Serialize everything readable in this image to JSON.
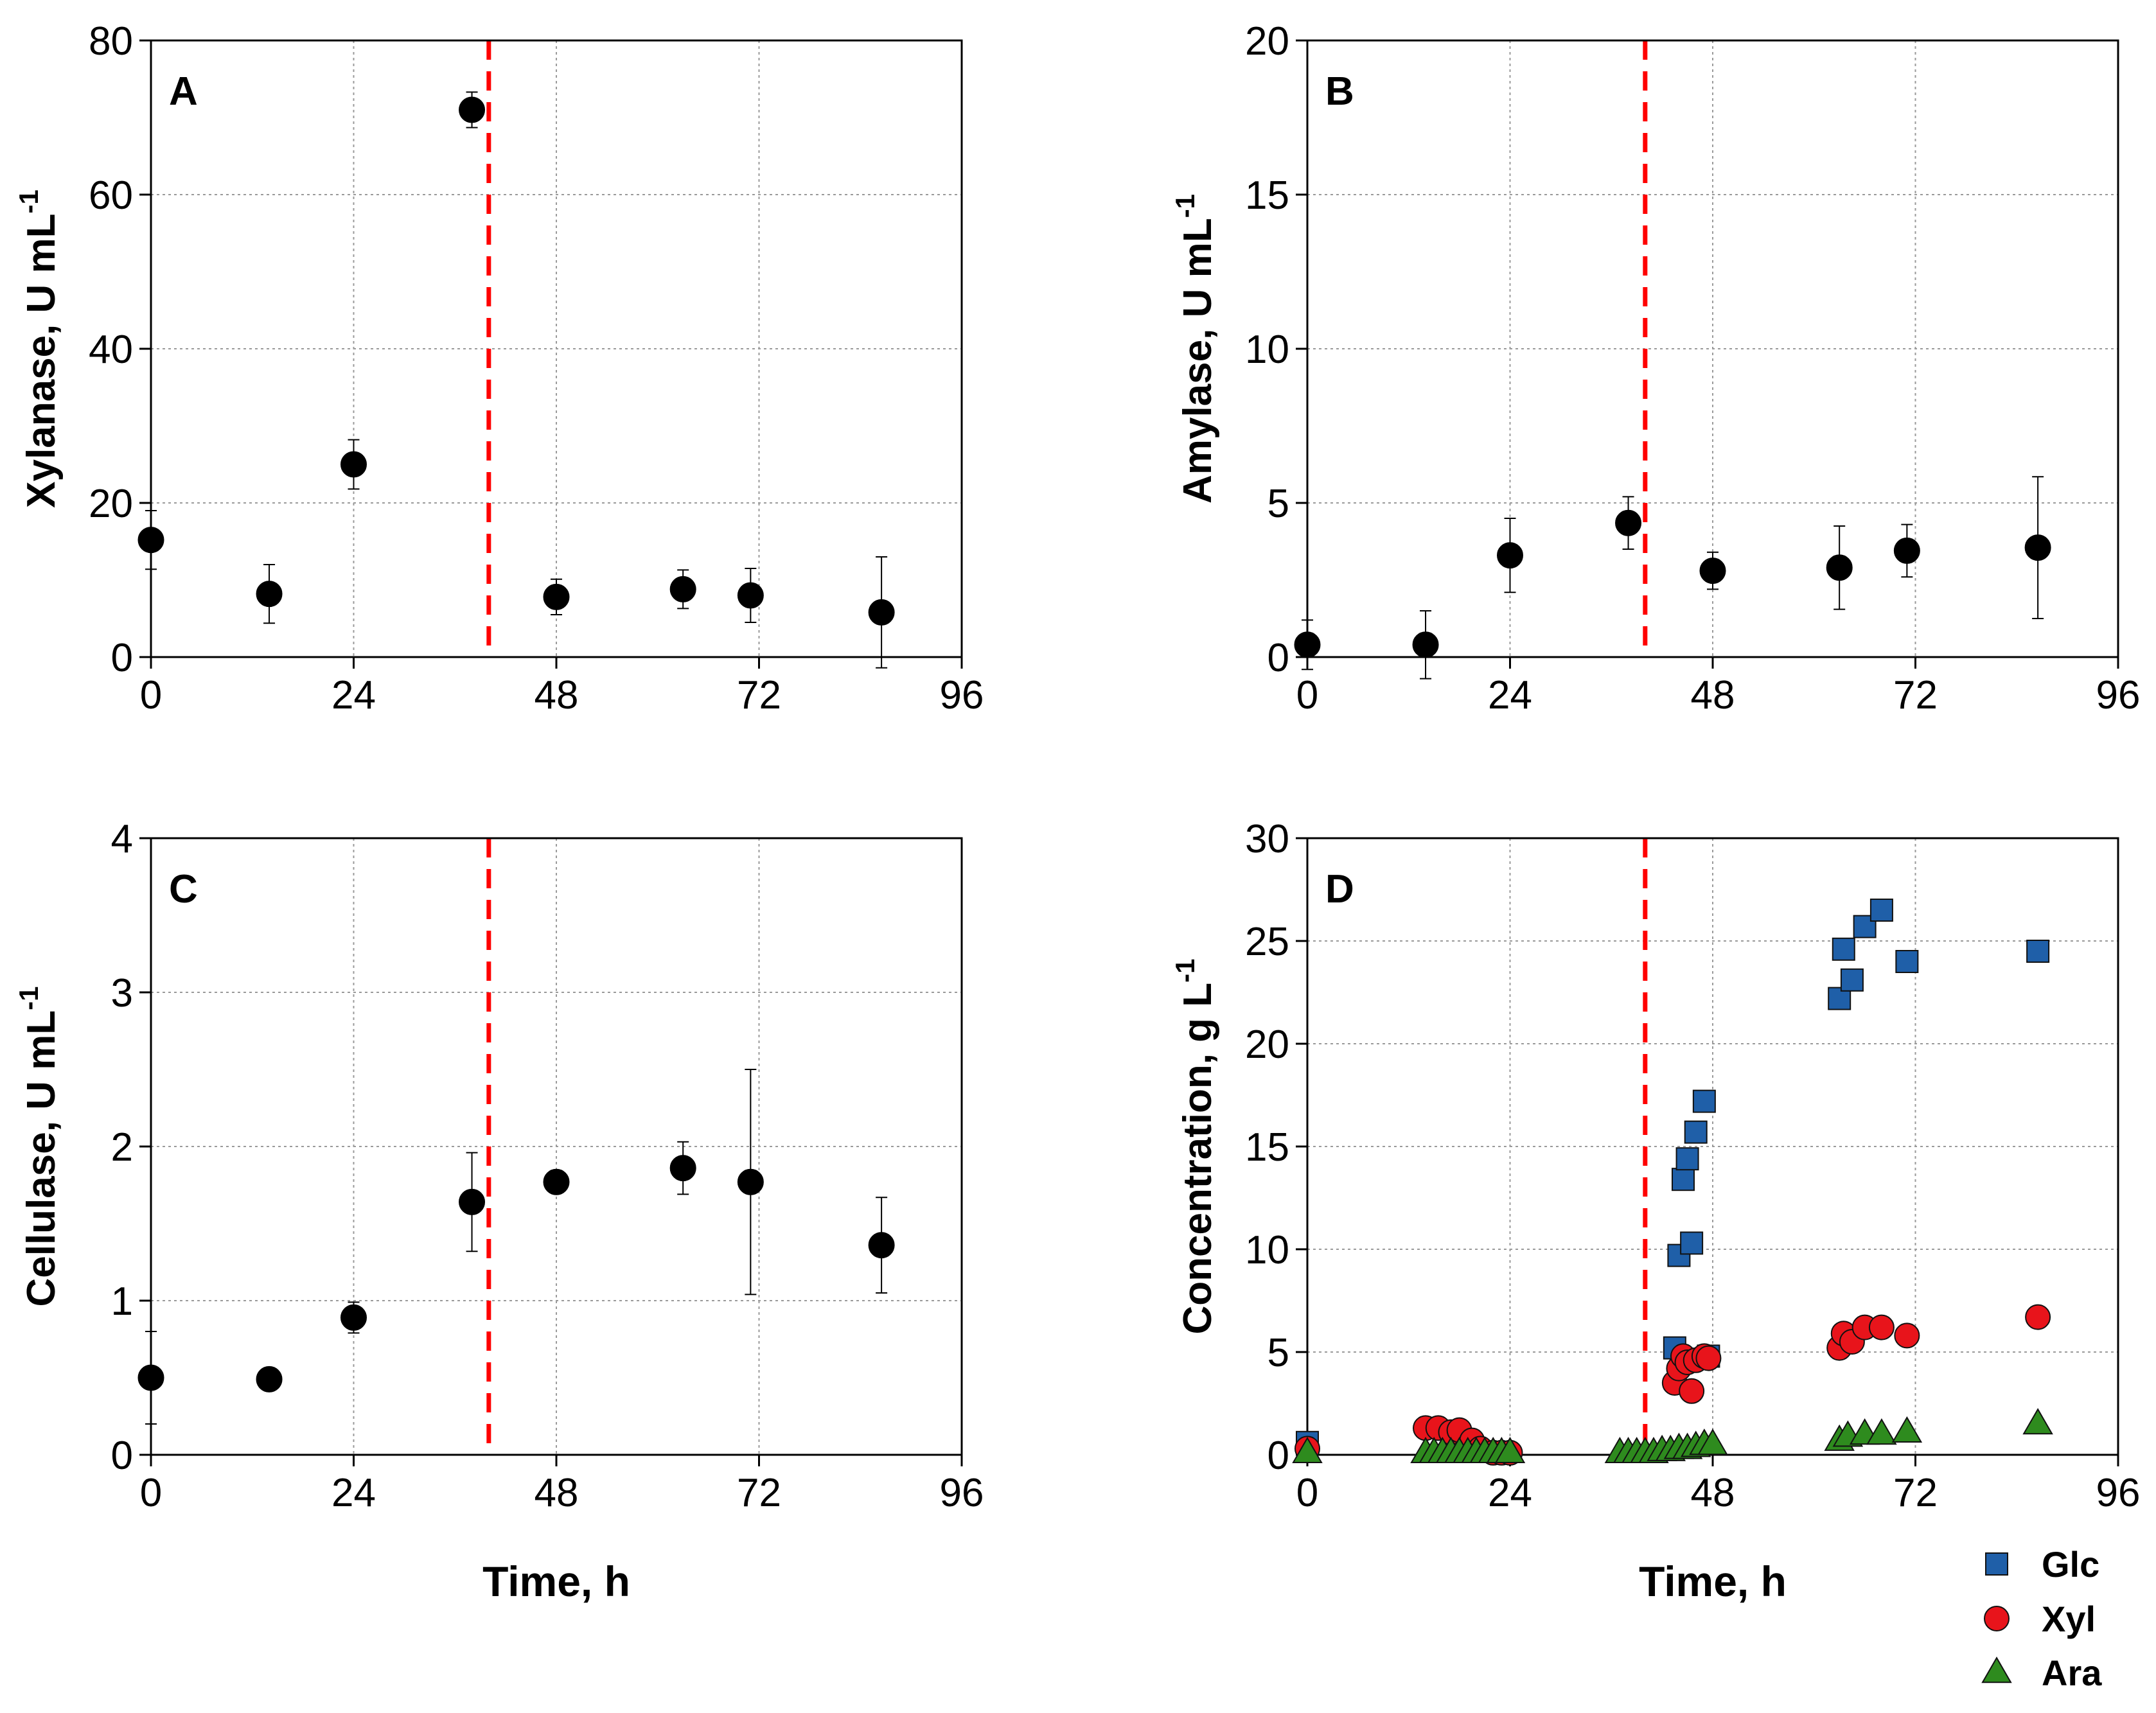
{
  "colors": {
    "marker": "#000000",
    "errorbar": "#000000",
    "grid": "#9a9a9a",
    "inoculation_line": "#ff0000",
    "glc": "#1f5fa8",
    "xyl": "#e8141b",
    "ara": "#2e8b1e",
    "marker_edge": "#111111"
  },
  "chart_data": [
    {
      "panel": "A",
      "type": "scatter",
      "xlabel": "",
      "ylabel": "Xylanase, U mL",
      "ylabel_sup": "-1",
      "xlim": [
        0,
        96
      ],
      "ylim": [
        0,
        80
      ],
      "xticks": [
        0,
        24,
        48,
        72,
        96
      ],
      "yticks": [
        0,
        20,
        40,
        60,
        80
      ],
      "xtick_labels": [
        "0",
        "24",
        "48",
        "72",
        "96"
      ],
      "ytick_labels": [
        "0",
        "20",
        "40",
        "60",
        "80"
      ],
      "vline": 40,
      "series": [
        {
          "name": "Xylanase",
          "x": [
            0,
            14,
            24,
            38,
            48,
            63,
            71,
            86.5
          ],
          "y": [
            15.2,
            8.2,
            25,
            71,
            7.8,
            8.8,
            8,
            5.8
          ],
          "err": [
            3.8,
            3.8,
            3.2,
            2.3,
            2.3,
            2.5,
            3.5,
            7.2
          ]
        }
      ]
    },
    {
      "panel": "B",
      "type": "scatter",
      "xlabel": "",
      "ylabel": "Amylase, U mL",
      "ylabel_sup": "-1",
      "xlim": [
        0,
        96
      ],
      "ylim": [
        0,
        20
      ],
      "xticks": [
        0,
        24,
        48,
        72,
        96
      ],
      "yticks": [
        0,
        5,
        10,
        15,
        20
      ],
      "xtick_labels": [
        "0",
        "24",
        "48",
        "72",
        "96"
      ],
      "ytick_labels": [
        "0",
        "5",
        "10",
        "15",
        "20"
      ],
      "vline": 40,
      "series": [
        {
          "name": "Amylase",
          "x": [
            0,
            14,
            24,
            38,
            48,
            63,
            71,
            86.5
          ],
          "y": [
            0.4,
            0.4,
            3.3,
            4.35,
            2.8,
            2.9,
            3.45,
            3.55
          ],
          "err": [
            0.8,
            1.1,
            1.2,
            0.85,
            0.6,
            1.35,
            0.85,
            2.3
          ]
        }
      ]
    },
    {
      "panel": "C",
      "type": "scatter",
      "xlabel": "Time, h",
      "ylabel": "Cellulase, U mL",
      "ylabel_sup": "-1",
      "xlim": [
        0,
        96
      ],
      "ylim": [
        0,
        4
      ],
      "xticks": [
        0,
        24,
        48,
        72,
        96
      ],
      "yticks": [
        0,
        1,
        2,
        3,
        4
      ],
      "xtick_labels": [
        "0",
        "24",
        "48",
        "72",
        "96"
      ],
      "ytick_labels": [
        "0",
        "1",
        "2",
        "3",
        "4"
      ],
      "vline": 40,
      "series": [
        {
          "name": "Cellulase",
          "x": [
            0,
            14,
            24,
            38,
            48,
            63,
            71,
            86.5
          ],
          "y": [
            0.5,
            0.49,
            0.89,
            1.64,
            1.77,
            1.86,
            1.77,
            1.36
          ],
          "err": [
            0.3,
            0.03,
            0.1,
            0.32,
            0.05,
            0.17,
            0.73,
            0.31
          ]
        }
      ]
    },
    {
      "panel": "D",
      "type": "scatter",
      "xlabel": "Time, h",
      "ylabel": "Concentration, g L",
      "ylabel_sup": "-1",
      "xlim": [
        0,
        96
      ],
      "ylim": [
        0,
        30
      ],
      "xticks": [
        0,
        24,
        48,
        72,
        96
      ],
      "yticks": [
        0,
        5,
        10,
        15,
        20,
        25,
        30
      ],
      "xtick_labels": [
        "0",
        "24",
        "48",
        "72",
        "96"
      ],
      "ytick_labels": [
        "0",
        "5",
        "10",
        "15",
        "20",
        "25",
        "30"
      ],
      "vline": 40,
      "legend": "below-right",
      "series": [
        {
          "name": "Glc",
          "marker": "square",
          "x": [
            0,
            43.5,
            44,
            44.5,
            45,
            45.5,
            46,
            47,
            47.5,
            63,
            63.5,
            64.5,
            66,
            68,
            71,
            86.5
          ],
          "y": [
            0.6,
            5.2,
            9.7,
            13.4,
            14.4,
            10.3,
            15.7,
            17.2,
            4.8,
            22.2,
            24.6,
            23.1,
            25.7,
            26.5,
            24,
            24.5
          ]
        },
        {
          "name": "Xyl",
          "marker": "circle",
          "x": [
            0,
            14,
            15.5,
            17,
            18,
            19.5,
            20.5,
            22,
            23,
            24,
            43.5,
            44,
            44.5,
            45,
            45.5,
            46,
            47,
            47.5,
            63,
            63.5,
            64.5,
            66,
            68,
            71,
            86.5
          ],
          "y": [
            0.3,
            1.3,
            1.3,
            1.1,
            1.2,
            0.7,
            0.3,
            0.1,
            0.1,
            0.1,
            3.5,
            4.2,
            4.8,
            4.5,
            3.1,
            4.6,
            4.8,
            4.7,
            5.2,
            5.9,
            5.5,
            6.2,
            6.2,
            5.8,
            6.7
          ]
        },
        {
          "name": "Ara",
          "marker": "triangle",
          "x": [
            0,
            14,
            15,
            16,
            17,
            18,
            19,
            20,
            21,
            22,
            23,
            24,
            37,
            38,
            39,
            40,
            41,
            42,
            43,
            44,
            45,
            46,
            47,
            48,
            63,
            64,
            66,
            68,
            71,
            86.5
          ],
          "y": [
            0.1,
            0.1,
            0.1,
            0.1,
            0.1,
            0.1,
            0.1,
            0.1,
            0.1,
            0.1,
            0.1,
            0.1,
            0.1,
            0.1,
            0.1,
            0.1,
            0.1,
            0.2,
            0.2,
            0.3,
            0.3,
            0.4,
            0.5,
            0.5,
            0.7,
            0.9,
            1.0,
            1.0,
            1.1,
            1.5
          ]
        }
      ]
    }
  ]
}
